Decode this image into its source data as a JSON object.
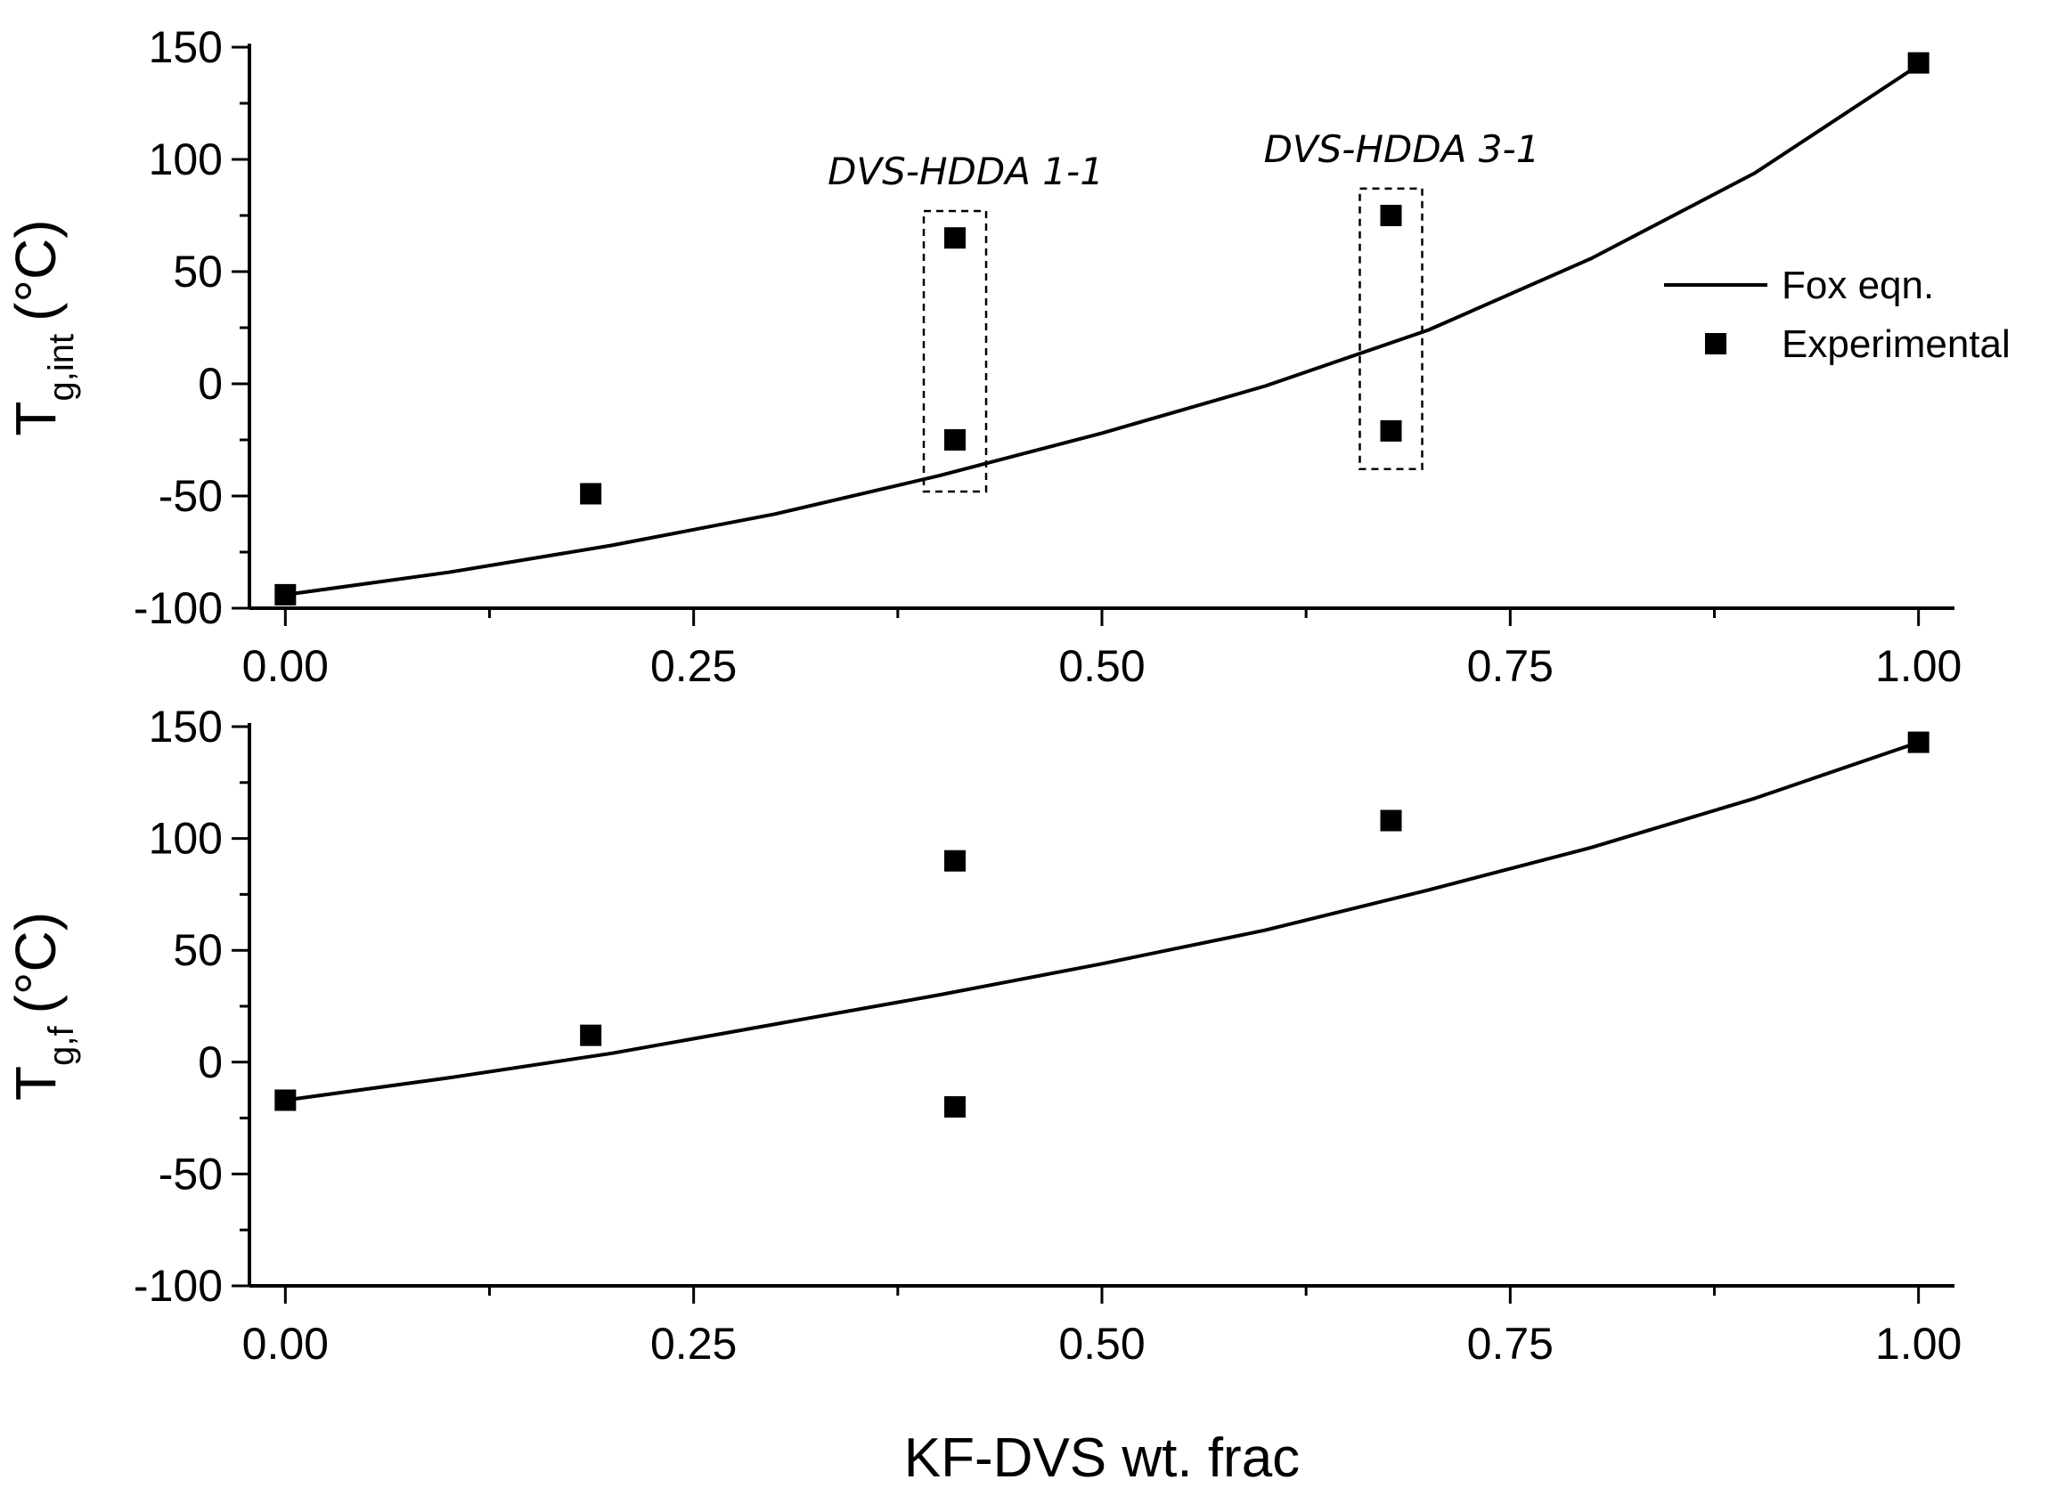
{
  "chart_data": [
    {
      "type": "scatter",
      "panel": "top",
      "ylabel": {
        "main": "T",
        "sub": "g,int",
        "unit": "(°C)"
      },
      "xlabel": "",
      "xlim": [
        0.0,
        1.0
      ],
      "ylim": [
        -100,
        150
      ],
      "xticks": [
        "0.00",
        "0.25",
        "0.50",
        "0.75",
        "1.00"
      ],
      "yticks": [
        "-100",
        "-50",
        "0",
        "50",
        "100",
        "150"
      ],
      "legend_position": "right",
      "legend": [
        {
          "name": "Fox eqn.",
          "style": "line"
        },
        {
          "name": "Experimental",
          "style": "square"
        }
      ],
      "series": [
        {
          "name": "Fox eqn.",
          "style": "line",
          "x": [
            0.0,
            0.1,
            0.2,
            0.3,
            0.4,
            0.5,
            0.6,
            0.7,
            0.8,
            0.9,
            1.0
          ],
          "y": [
            -94,
            -84,
            -72,
            -58,
            -41,
            -22,
            -1,
            24,
            56,
            94,
            142
          ]
        },
        {
          "name": "Experimental",
          "style": "square",
          "x": [
            0.0,
            0.187,
            0.41,
            0.41,
            0.677,
            0.677,
            1.0
          ],
          "y": [
            -94,
            -49,
            65,
            -25,
            75,
            -21,
            143
          ]
        }
      ],
      "annotations": [
        {
          "text": "DVS-HDDA 1-1",
          "x": 0.41,
          "ymin": -48,
          "ymax": 77
        },
        {
          "text": "DVS-HDDA 3-1",
          "x": 0.677,
          "ymin": -38,
          "ymax": 87
        }
      ]
    },
    {
      "type": "scatter",
      "panel": "bottom",
      "ylabel": {
        "main": "T",
        "sub": "g,f",
        "unit": "(°C)"
      },
      "xlabel": "KF-DVS wt. frac",
      "xlim": [
        0.0,
        1.0
      ],
      "ylim": [
        -100,
        150
      ],
      "xticks": [
        "0.00",
        "0.25",
        "0.50",
        "0.75",
        "1.00"
      ],
      "yticks": [
        "-100",
        "-50",
        "0",
        "50",
        "100",
        "150"
      ],
      "series": [
        {
          "name": "Fox eqn.",
          "style": "line",
          "x": [
            0.0,
            0.1,
            0.2,
            0.3,
            0.4,
            0.5,
            0.6,
            0.7,
            0.8,
            0.9,
            1.0
          ],
          "y": [
            -17,
            -7,
            4,
            17,
            30,
            44,
            59,
            77,
            96,
            118,
            143
          ]
        },
        {
          "name": "Experimental",
          "style": "square",
          "x": [
            0.0,
            0.187,
            0.41,
            0.41,
            0.677,
            1.0
          ],
          "y": [
            -17,
            12,
            90,
            -20,
            108,
            143
          ]
        }
      ]
    }
  ]
}
